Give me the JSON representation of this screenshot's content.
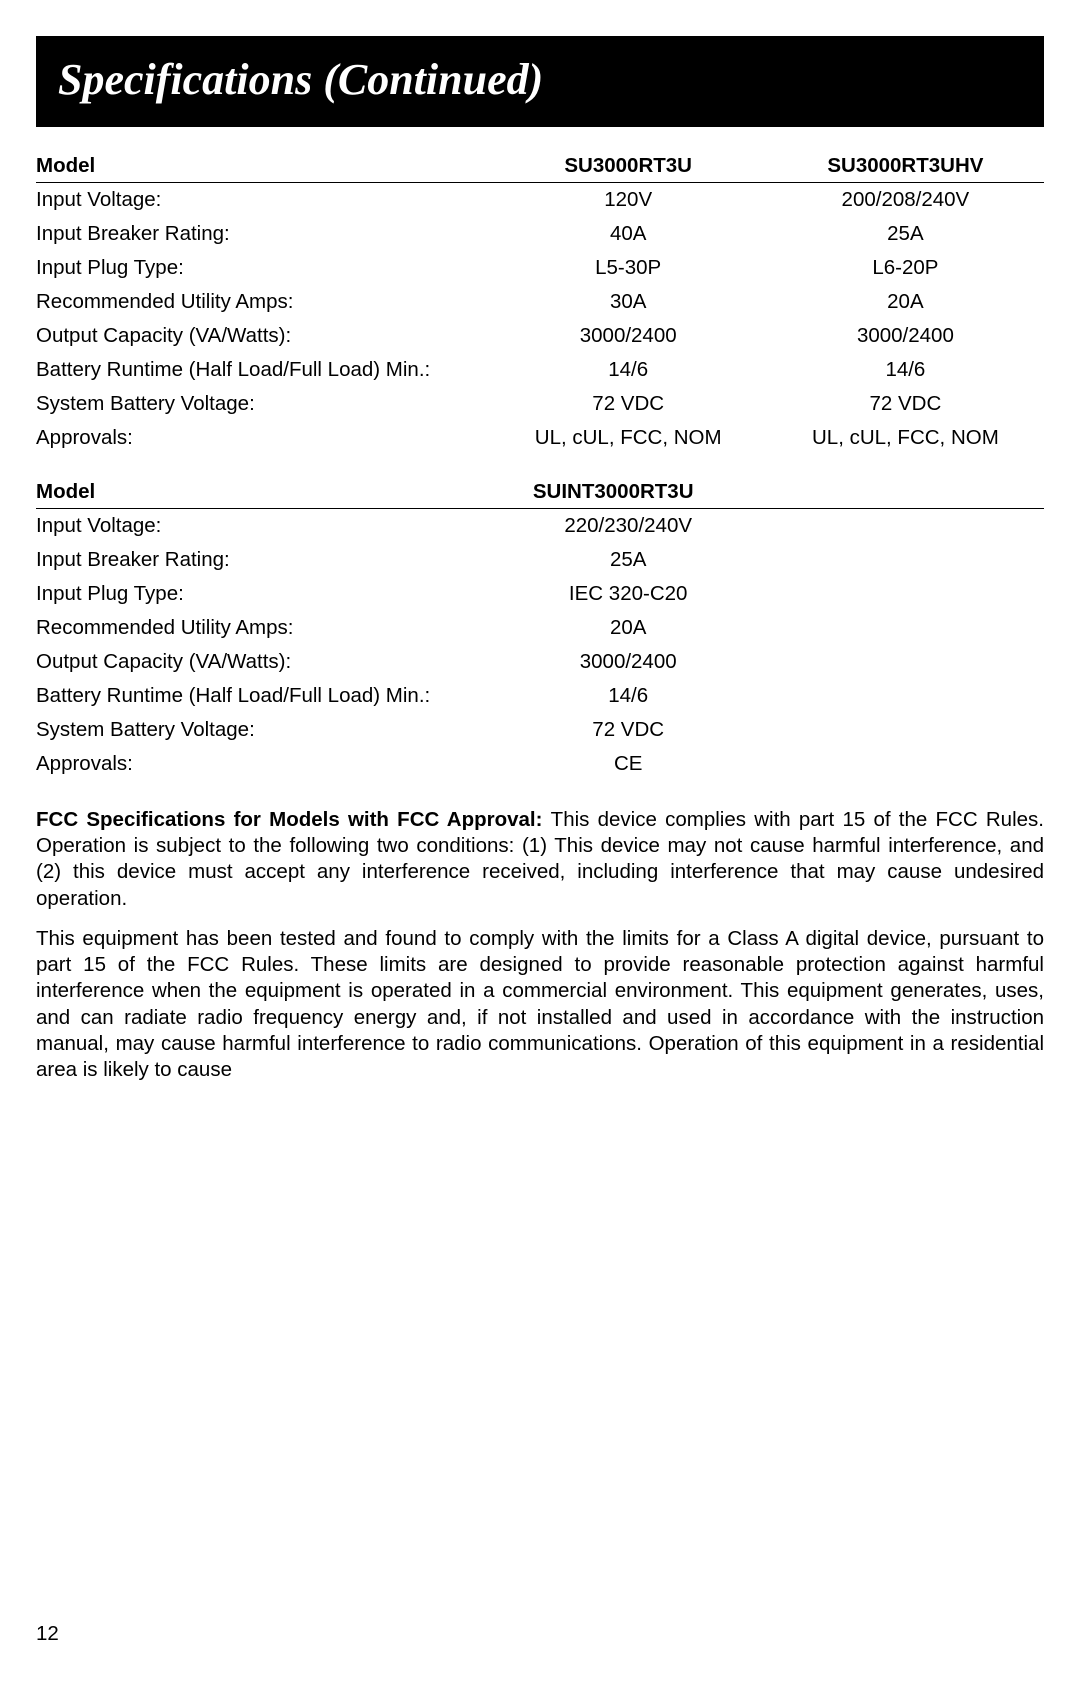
{
  "banner": {
    "title": "Specifications (Continued)"
  },
  "table1": {
    "header": {
      "label": "Model",
      "col1": "SU3000RT3U",
      "col2": "SU3000RT3UHV"
    },
    "rows": [
      {
        "label": "Input Voltage:",
        "col1": "120V",
        "col2": "200/208/240V"
      },
      {
        "label": "Input Breaker Rating:",
        "col1": "40A",
        "col2": "25A"
      },
      {
        "label": "Input Plug Type:",
        "col1": "L5-30P",
        "col2": "L6-20P"
      },
      {
        "label": "Recommended Utility Amps:",
        "col1": "30A",
        "col2": "20A"
      },
      {
        "label": "Output Capacity (VA/Watts):",
        "col1": "3000/2400",
        "col2": "3000/2400"
      },
      {
        "label": "Battery Runtime (Half Load/Full Load) Min.:",
        "col1": "14/6",
        "col2": "14/6"
      },
      {
        "label": "System Battery Voltage:",
        "col1": "72 VDC",
        "col2": "72 VDC"
      },
      {
        "label": "Approvals:",
        "col1": "UL, cUL, FCC, NOM",
        "col2": "UL, cUL, FCC, NOM"
      }
    ]
  },
  "table2": {
    "header": {
      "label": "Model",
      "col1": "SUINT3000RT3U",
      "col2": ""
    },
    "rows": [
      {
        "label": "Input Voltage:",
        "col1": "220/230/240V",
        "col2": ""
      },
      {
        "label": "Input Breaker Rating:",
        "col1": "25A",
        "col2": ""
      },
      {
        "label": "Input Plug Type:",
        "col1": "IEC 320-C20",
        "col2": ""
      },
      {
        "label": "Recommended Utility Amps:",
        "col1": "20A",
        "col2": ""
      },
      {
        "label": "Output Capacity (VA/Watts):",
        "col1": "3000/2400",
        "col2": ""
      },
      {
        "label": "Battery Runtime (Half Load/Full Load) Min.:",
        "col1": "14/6",
        "col2": ""
      },
      {
        "label": "System Battery Voltage:",
        "col1": "72 VDC",
        "col2": ""
      },
      {
        "label": "Approvals:",
        "col1": "CE",
        "col2": ""
      }
    ]
  },
  "body": {
    "p1_bold": "FCC Specifications for Models with FCC Approval: ",
    "p1_rest": "This device complies with part 15 of the FCC Rules. Operation is subject to the following two conditions: (1) This device may not cause harmful interference, and (2) this device must accept any interference received, including interference that may cause undesired operation.",
    "p2": "This equipment has been tested and found to comply with the limits for a Class A digital device, pursuant to part 15 of the FCC Rules. These limits are designed to provide reasonable protection against harmful interference when the equipment is operated in a commercial environment. This equipment generates, uses, and can radiate radio frequency energy and, if not installed and used in accordance with the instruction manual, may cause harmful interference to radio communications. Operation of this equipment in a residential area is likely to cause"
  },
  "page_number": "12"
}
